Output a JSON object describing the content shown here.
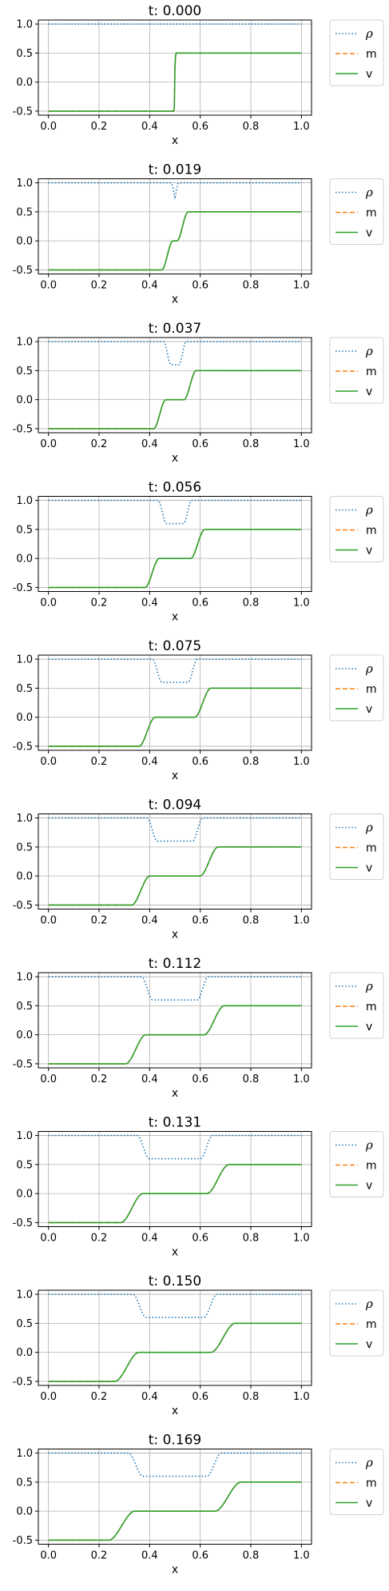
{
  "chart_data": {
    "type": "line",
    "xlabel": "x",
    "xlim": [
      -0.04,
      1.04
    ],
    "ylim": [
      -0.57,
      1.07
    ],
    "x_ticks": [
      "0.0",
      "0.2",
      "0.4",
      "0.6",
      "0.8",
      "1.0"
    ],
    "y_ticks": [
      "-0.5",
      "0.0",
      "0.5",
      "1.0"
    ],
    "grid": true,
    "legend_placement": "outside-top-right",
    "legend_entries": [
      "ρ",
      "m",
      "v"
    ],
    "colors": {
      "rho": "#1f77b4",
      "m": "#ff7f0e",
      "v": "#2ca02c"
    },
    "line_styles": {
      "rho": "dotted",
      "m": "dashed",
      "v": "solid"
    },
    "panels": [
      {
        "title": "t:  0.000",
        "rho_min": 1.0,
        "rho_half": 0.0,
        "v_half": 0.0,
        "rho_w": 0.004,
        "v_w": 0.004
      },
      {
        "title": "t:  0.019",
        "rho_min": 0.6,
        "rho_half": 0.003,
        "v_half": 0.03,
        "rho_w": 0.012,
        "v_w": 0.022
      },
      {
        "title": "t:  0.037",
        "rho_min": 0.6,
        "rho_half": 0.03,
        "v_half": 0.06,
        "rho_w": 0.014,
        "v_w": 0.024
      },
      {
        "title": "t:  0.056",
        "rho_min": 0.6,
        "rho_half": 0.05,
        "v_half": 0.09,
        "rho_w": 0.016,
        "v_w": 0.028
      },
      {
        "title": "t:  0.075",
        "rho_min": 0.6,
        "rho_half": 0.07,
        "v_half": 0.11,
        "rho_w": 0.018,
        "v_w": 0.032
      },
      {
        "title": "t:  0.094",
        "rho_min": 0.6,
        "rho_half": 0.09,
        "v_half": 0.135,
        "rho_w": 0.02,
        "v_w": 0.036
      },
      {
        "title": "t:  0.112",
        "rho_min": 0.6,
        "rho_half": 0.11,
        "v_half": 0.155,
        "rho_w": 0.022,
        "v_w": 0.04
      },
      {
        "title": "t:  0.131",
        "rho_min": 0.6,
        "rho_half": 0.125,
        "v_half": 0.17,
        "rho_w": 0.024,
        "v_w": 0.044
      },
      {
        "title": "t:  0.150",
        "rho_min": 0.6,
        "rho_half": 0.14,
        "v_half": 0.19,
        "rho_w": 0.026,
        "v_w": 0.048
      },
      {
        "title": "t:  0.169",
        "rho_min": 0.6,
        "rho_half": 0.155,
        "v_half": 0.21,
        "rho_w": 0.028,
        "v_w": 0.052
      }
    ]
  }
}
